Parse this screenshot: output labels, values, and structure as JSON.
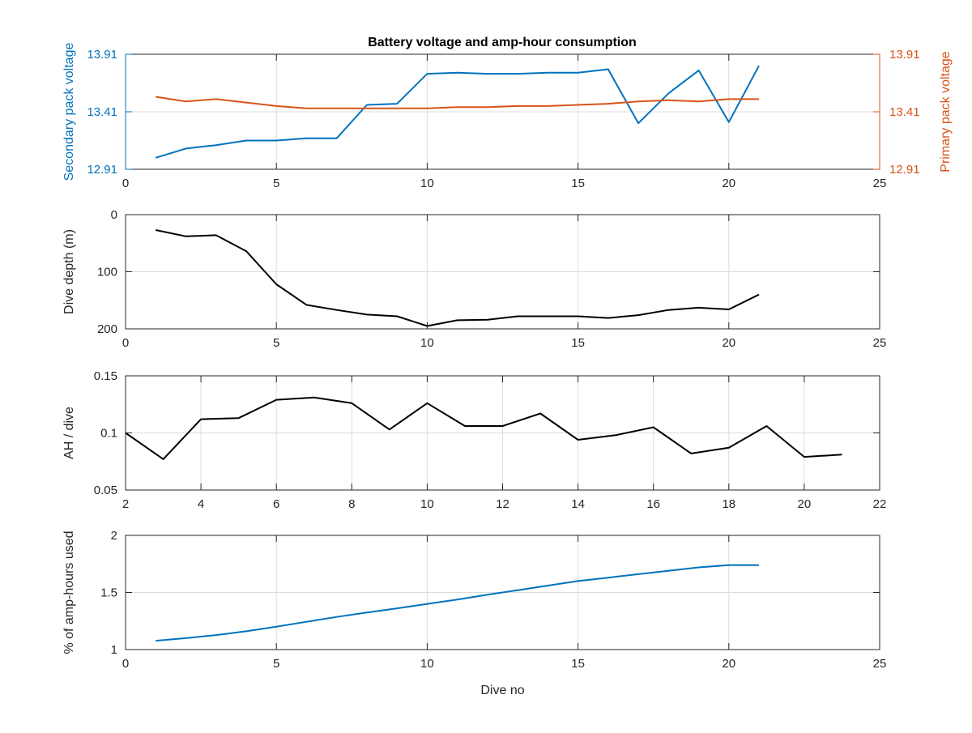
{
  "figure": {
    "title": "Battery voltage and amp-hour consumption",
    "colors": {
      "blue": "#0072BD",
      "orange": "#D95319",
      "black": "#000000",
      "grid": "#dcdcdc"
    }
  },
  "chart_data": [
    {
      "type": "line",
      "title": "Battery voltage and amp-hour consumption",
      "xlabel": "",
      "xlim": [
        0,
        25
      ],
      "xticks": [
        0,
        5,
        10,
        15,
        20,
        25
      ],
      "grid": true,
      "y_left": {
        "label": "Secondary pack voltage",
        "lim": [
          12.91,
          13.91
        ],
        "ticks": [
          12.91,
          13.41,
          13.91
        ],
        "tick_labels": [
          "12.91",
          "13.41",
          "13.91"
        ],
        "color": "#0072BD"
      },
      "y_right": {
        "label": "Primary pack voltage",
        "lim": [
          12.91,
          13.91
        ],
        "ticks": [
          12.91,
          13.41,
          13.91
        ],
        "tick_labels": [
          "12.91",
          "13.41",
          "13.91"
        ],
        "color": "#D95319"
      },
      "series": [
        {
          "axis": "left",
          "color": "#0072BD",
          "x": [
            1,
            2,
            3,
            4,
            5,
            6,
            7,
            8,
            9,
            10,
            11,
            12,
            13,
            14,
            15,
            16,
            17,
            18,
            19,
            20,
            21
          ],
          "values": [
            13.01,
            13.09,
            13.12,
            13.16,
            13.16,
            13.18,
            13.18,
            13.47,
            13.48,
            13.74,
            13.75,
            13.74,
            13.74,
            13.75,
            13.75,
            13.78,
            13.31,
            13.57,
            13.77,
            13.32,
            13.81
          ]
        },
        {
          "axis": "right",
          "color": "#D95319",
          "x": [
            1,
            2,
            3,
            4,
            5,
            6,
            7,
            8,
            9,
            10,
            11,
            12,
            13,
            14,
            15,
            16,
            17,
            18,
            19,
            20,
            21
          ],
          "values": [
            13.54,
            13.5,
            13.52,
            13.49,
            13.46,
            13.44,
            13.44,
            13.44,
            13.44,
            13.44,
            13.45,
            13.45,
            13.46,
            13.46,
            13.47,
            13.48,
            13.5,
            13.51,
            13.5,
            13.52,
            13.52
          ]
        }
      ]
    },
    {
      "type": "line",
      "xlabel": "",
      "ylabel": "Dive depth (m)",
      "xlim": [
        0,
        25
      ],
      "xticks": [
        0,
        5,
        10,
        15,
        20,
        25
      ],
      "ylim": [
        0,
        200
      ],
      "yticks": [
        0,
        100,
        200
      ],
      "y_reversed": true,
      "grid": true,
      "series": [
        {
          "color": "#000000",
          "x": [
            1,
            2,
            3,
            4,
            5,
            6,
            7,
            8,
            9,
            10,
            11,
            12,
            13,
            14,
            15,
            16,
            17,
            18,
            19,
            20,
            21
          ],
          "values": [
            27,
            38,
            36,
            64,
            122,
            158,
            167,
            175,
            178,
            195,
            185,
            184,
            178,
            178,
            178,
            181,
            176,
            167,
            163,
            166,
            140
          ]
        }
      ]
    },
    {
      "type": "line",
      "xlabel": "",
      "ylabel": "AH / dive",
      "xlim": [
        2,
        22
      ],
      "xticks": [
        2,
        4,
        6,
        8,
        10,
        12,
        14,
        16,
        18,
        20,
        22
      ],
      "ylim": [
        0.05,
        0.15
      ],
      "yticks": [
        0.05,
        0.1,
        0.15
      ],
      "tick_labels_y": [
        "0.05",
        "0.1",
        "0.15"
      ],
      "grid": true,
      "series": [
        {
          "color": "#000000",
          "x": [
            2,
            3,
            4,
            5,
            6,
            7,
            8,
            9,
            10,
            11,
            12,
            13,
            14,
            15,
            16,
            17,
            18,
            19,
            20,
            21
          ],
          "values": [
            0.1,
            0.077,
            0.112,
            0.113,
            0.129,
            0.131,
            0.126,
            0.103,
            0.126,
            0.106,
            0.106,
            0.117,
            0.094,
            0.098,
            0.105,
            0.082,
            0.087,
            0.106,
            0.079,
            0.081
          ]
        }
      ]
    },
    {
      "type": "line",
      "xlabel": "Dive no",
      "ylabel": "% of amp-hours used",
      "xlim": [
        0,
        25
      ],
      "xticks": [
        0,
        5,
        10,
        15,
        20,
        25
      ],
      "ylim": [
        1,
        2
      ],
      "yticks": [
        1,
        1.5,
        2
      ],
      "tick_labels_y": [
        "1",
        "1.5",
        "2"
      ],
      "grid": true,
      "series": [
        {
          "color": "#0072BD",
          "x": [
            1,
            2,
            3,
            4,
            5,
            6,
            7,
            8,
            9,
            10,
            11,
            12,
            13,
            14,
            15,
            16,
            17,
            18,
            19,
            20,
            21
          ],
          "values": [
            1.077,
            1.1,
            1.127,
            1.16,
            1.2,
            1.243,
            1.286,
            1.325,
            1.361,
            1.4,
            1.438,
            1.48,
            1.52,
            1.56,
            1.6,
            1.63,
            1.66,
            1.69,
            1.72,
            1.74,
            1.74
          ]
        }
      ]
    }
  ]
}
